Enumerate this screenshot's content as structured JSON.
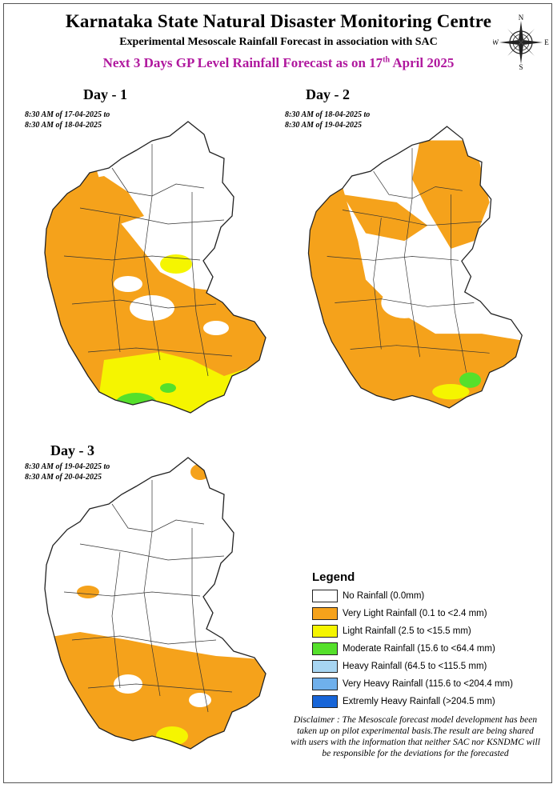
{
  "header": {
    "title": "Karnataka State Natural Disaster Monitoring Centre",
    "subtitle": "Experimental Mesoscale Rainfall Forecast in association with SAC",
    "forecast_title": "Next 3 Days GP Level Rainfall Forecast  as on 17",
    "forecast_title_sup": "th",
    "forecast_title_end": " April 2025"
  },
  "compass": {
    "n": "N",
    "s": "S",
    "e": "E",
    "w": "W"
  },
  "days": [
    {
      "label": "Day - 1",
      "from": "8:30 AM of 17-04-2025 to",
      "to": "8:30 AM of 18-04-2025"
    },
    {
      "label": "Day - 2",
      "from": "8:30 AM of 18-04-2025 to",
      "to": "8:30 AM of 19-04-2025"
    },
    {
      "label": "Day - 3",
      "from": "8:30 AM of 19-04-2025 to",
      "to": "8:30 AM of 20-04-2025"
    }
  ],
  "legend": {
    "title": "Legend",
    "items": [
      {
        "label": "No Rainfall (0.0mm)",
        "color": "#ffffff"
      },
      {
        "label": "Very Light Rainfall (0.1 to <2.4 mm)",
        "color": "#f5a21b"
      },
      {
        "label": " Light Rainfall (2.5 to <15.5 mm)",
        "color": "#f5f500"
      },
      {
        "label": "Moderate Rainfall (15.6 to <64.4 mm)",
        "color": "#55e02b"
      },
      {
        "label": "Heavy Rainfall (64.5 to <115.5 mm)",
        "color": "#a7d5f2"
      },
      {
        "label": "Very Heavy Rainfall  (115.6 to <204.4 mm)",
        "color": "#6fb0ec"
      },
      {
        "label": "Extremly Heavy Rainfall   (>204.5 mm)",
        "color": "#1765d8"
      }
    ]
  },
  "disclaimer": "Disclaimer : The Mesoscale forecast model development has been taken up on pilot experimental basis.The result are being shared with users with the information that neither SAC nor KSNDMC will be responsible  for the deviations for the forecasted"
}
